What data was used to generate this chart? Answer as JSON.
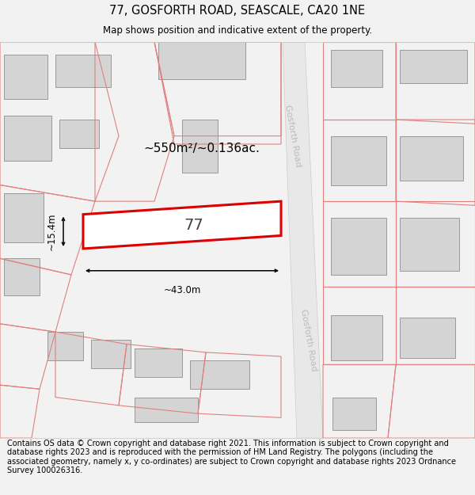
{
  "title_line1": "77, GOSFORTH ROAD, SEASCALE, CA20 1NE",
  "title_line2": "Map shows position and indicative extent of the property.",
  "area_label": "~550m²/~0.136ac.",
  "width_label": "~43.0m",
  "height_label": "~15.4m",
  "number_label": "77",
  "road_label_top": "Gosforth Road",
  "road_label_bottom": "Gosforth Road",
  "footer_text": "Contains OS data © Crown copyright and database right 2021. This information is subject to Crown copyright and database rights 2023 and is reproduced with the permission of HM Land Registry. The polygons (including the associated geometry, namely x, y co-ordinates) are subject to Crown copyright and database rights 2023 Ordnance Survey 100026316.",
  "bg_color": "#f2f2f2",
  "map_bg": "#ffffff",
  "highlight_color": "#dd0000",
  "building_fill": "#d4d4d4",
  "building_edge": "#999999",
  "plot_edge": "#e08080",
  "road_fill": "#e0e0e0",
  "road_edge": "#cccccc",
  "road_label_color": "#bbbbbb",
  "title_fontsize": 10.5,
  "subtitle_fontsize": 8.5,
  "footer_fontsize": 7.0,
  "area_fontsize": 11,
  "number_fontsize": 14,
  "dim_fontsize": 8.5
}
